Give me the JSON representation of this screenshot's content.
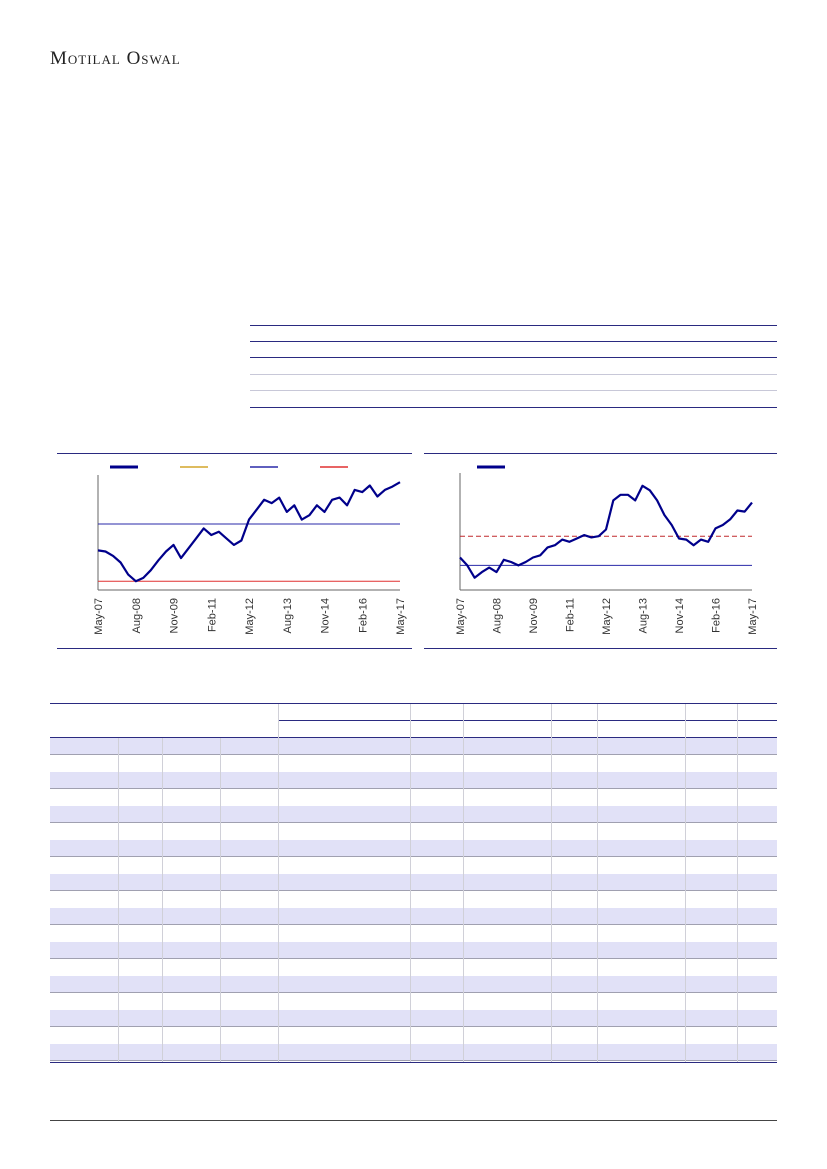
{
  "header": {
    "logo": "Motilal Oswal"
  },
  "chart_data": [
    {
      "type": "line",
      "categories": [
        "May-07",
        null,
        null,
        null,
        null,
        "Aug-08",
        null,
        null,
        null,
        null,
        "Nov-09",
        null,
        null,
        null,
        null,
        "Feb-11",
        null,
        null,
        null,
        null,
        "May-12",
        null,
        null,
        null,
        null,
        "Aug-13",
        null,
        null,
        null,
        null,
        "Nov-14",
        null,
        null,
        null,
        null,
        "Feb-16",
        null,
        null,
        null,
        null,
        "May-17"
      ],
      "series": [
        {
          "color": "#00008b",
          "values": [
            36,
            35,
            31,
            25,
            14,
            8,
            11,
            18,
            27,
            35,
            41,
            29,
            38,
            47,
            56,
            50,
            53,
            47,
            41,
            45,
            64,
            73,
            82,
            79,
            84,
            71,
            77,
            64,
            68,
            77,
            71,
            82,
            84,
            77,
            91,
            89,
            95,
            85,
            91,
            94,
            98
          ]
        }
      ],
      "hlines": [
        {
          "color": "#2a2aa8",
          "value": 60,
          "dash": false
        },
        {
          "color": "#e03030",
          "value": 8,
          "dash": false
        }
      ],
      "legend_colors": [
        "#00008b",
        "#d4a52a",
        "#2a2aa8",
        "#e03030"
      ],
      "ylim": [
        0,
        100
      ]
    },
    {
      "type": "line",
      "categories": [
        "May-07",
        null,
        null,
        null,
        null,
        "Aug-08",
        null,
        null,
        null,
        null,
        "Nov-09",
        null,
        null,
        null,
        null,
        "Feb-11",
        null,
        null,
        null,
        null,
        "May-12",
        null,
        null,
        null,
        null,
        "Aug-13",
        null,
        null,
        null,
        null,
        "Nov-14",
        null,
        null,
        null,
        null,
        "Feb-16",
        null,
        null,
        null,
        null,
        "May-17"
      ],
      "series": [
        {
          "color": "#00008b",
          "values": [
            29,
            22,
            11,
            16,
            20,
            16,
            27,
            25,
            22,
            25,
            29,
            31,
            38,
            40,
            45,
            43,
            46,
            49,
            47,
            48,
            54,
            80,
            85,
            85,
            80,
            93,
            89,
            80,
            67,
            58,
            46,
            45,
            40,
            45,
            43,
            55,
            58,
            63,
            71,
            70,
            78
          ]
        }
      ],
      "hlines": [
        {
          "color": "#c0282d",
          "value": 48,
          "dash": true
        },
        {
          "color": "#2a2aa8",
          "value": 22,
          "dash": false
        }
      ],
      "legend_colors": [
        "#00008b"
      ],
      "ylim": [
        0,
        100
      ]
    }
  ]
}
